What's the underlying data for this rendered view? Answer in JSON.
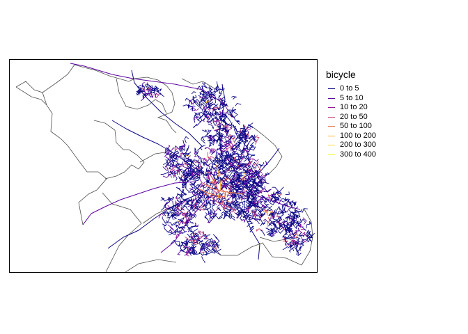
{
  "map": {
    "title": "",
    "boundary_color": "#4d4d4d",
    "background": "#ffffff"
  },
  "legend": {
    "title": "bicycle",
    "items": [
      {
        "label": "0 to 5",
        "color": "#0d0887"
      },
      {
        "label": "5 to 10",
        "color": "#5b02a3"
      },
      {
        "label": "10 to 20",
        "color": "#9a179b"
      },
      {
        "label": "20 to 50",
        "color": "#cb4678"
      },
      {
        "label": "50 to 100",
        "color": "#eb7852"
      },
      {
        "label": "100 to 200",
        "color": "#fbb32f"
      },
      {
        "label": "200 to 300",
        "color": "#f4d834"
      },
      {
        "label": "300 to 400",
        "color": "#f0f921"
      }
    ]
  }
}
